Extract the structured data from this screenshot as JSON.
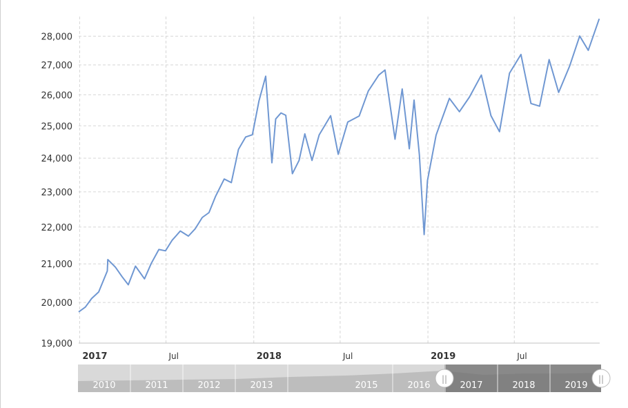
{
  "chart_data": {
    "type": "line",
    "title": "",
    "xlabel": "",
    "ylabel": "",
    "ylim": [
      19000,
      28600
    ],
    "y_scale": "log",
    "y_ticks": [
      19000,
      20000,
      21000,
      22000,
      23000,
      24000,
      25000,
      26000,
      27000,
      28000
    ],
    "y_tick_labels": [
      "19,000",
      "20,000",
      "21,000",
      "22,000",
      "23,000",
      "24,000",
      "25,000",
      "26,000",
      "27,000",
      "28,000"
    ],
    "x_tick_labels": [
      {
        "date": "2017-01-01",
        "label": "2017",
        "bold": true
      },
      {
        "date": "2017-07-01",
        "label": "Jul",
        "bold": false
      },
      {
        "date": "2018-01-01",
        "label": "2018",
        "bold": true
      },
      {
        "date": "2018-07-01",
        "label": "Jul",
        "bold": false
      },
      {
        "date": "2019-01-01",
        "label": "2019",
        "bold": true
      },
      {
        "date": "2019-07-01",
        "label": "Jul",
        "bold": false
      }
    ],
    "grid": true,
    "line_color": "#6f97d2",
    "series": [
      {
        "points": [
          [
            "2016-12-30",
            19763
          ],
          [
            "2017-01-13",
            19885
          ],
          [
            "2017-01-26",
            20100
          ],
          [
            "2017-02-10",
            20269
          ],
          [
            "2017-02-28",
            20812
          ],
          [
            "2017-03-01",
            21115
          ],
          [
            "2017-03-17",
            20914
          ],
          [
            "2017-03-31",
            20663
          ],
          [
            "2017-04-13",
            20453
          ],
          [
            "2017-04-28",
            20941
          ],
          [
            "2017-05-17",
            20607
          ],
          [
            "2017-05-31",
            21009
          ],
          [
            "2017-06-16",
            21384
          ],
          [
            "2017-06-30",
            21350
          ],
          [
            "2017-07-14",
            21638
          ],
          [
            "2017-07-31",
            21891
          ],
          [
            "2017-08-17",
            21750
          ],
          [
            "2017-08-31",
            21948
          ],
          [
            "2017-09-15",
            22268
          ],
          [
            "2017-09-29",
            22405
          ],
          [
            "2017-10-13",
            22872
          ],
          [
            "2017-10-31",
            23377
          ],
          [
            "2017-11-15",
            23271
          ],
          [
            "2017-11-30",
            24272
          ],
          [
            "2017-12-15",
            24651
          ],
          [
            "2017-12-29",
            24719
          ],
          [
            "2018-01-12",
            25803
          ],
          [
            "2018-01-26",
            26617
          ],
          [
            "2018-02-08",
            23860
          ],
          [
            "2018-02-16",
            25219
          ],
          [
            "2018-02-27",
            25410
          ],
          [
            "2018-03-09",
            25336
          ],
          [
            "2018-03-23",
            23533
          ],
          [
            "2018-04-06",
            23933
          ],
          [
            "2018-04-18",
            24748
          ],
          [
            "2018-05-03",
            23930
          ],
          [
            "2018-05-18",
            24716
          ],
          [
            "2018-06-11",
            25322
          ],
          [
            "2018-06-27",
            24118
          ],
          [
            "2018-07-17",
            25119
          ],
          [
            "2018-08-10",
            25313
          ],
          [
            "2018-08-29",
            26124
          ],
          [
            "2018-09-20",
            26656
          ],
          [
            "2018-10-03",
            26828
          ],
          [
            "2018-10-24",
            24583
          ],
          [
            "2018-11-08",
            26191
          ],
          [
            "2018-11-23",
            24286
          ],
          [
            "2018-12-03",
            25826
          ],
          [
            "2018-12-14",
            24101
          ],
          [
            "2018-12-24",
            21792
          ],
          [
            "2018-12-31",
            23327
          ],
          [
            "2019-01-18",
            24706
          ],
          [
            "2019-02-15",
            25883
          ],
          [
            "2019-03-08",
            25450
          ],
          [
            "2019-03-29",
            25928
          ],
          [
            "2019-04-23",
            26656
          ],
          [
            "2019-05-13",
            25324
          ],
          [
            "2019-05-31",
            24815
          ],
          [
            "2019-06-21",
            26719
          ],
          [
            "2019-07-15",
            27359
          ],
          [
            "2019-08-05",
            25717
          ],
          [
            "2019-08-23",
            25628
          ],
          [
            "2019-09-12",
            27182
          ],
          [
            "2019-10-02",
            26078
          ],
          [
            "2019-10-25",
            26958
          ],
          [
            "2019-11-15",
            28004
          ],
          [
            "2019-12-03",
            27502
          ],
          [
            "2019-12-26",
            28621
          ]
        ]
      }
    ]
  },
  "navigator": {
    "labels": [
      "2010",
      "2011",
      "2012",
      "2013",
      "2015",
      "2016",
      "2017",
      "2018",
      "2019"
    ],
    "handle_glyph": "||"
  }
}
